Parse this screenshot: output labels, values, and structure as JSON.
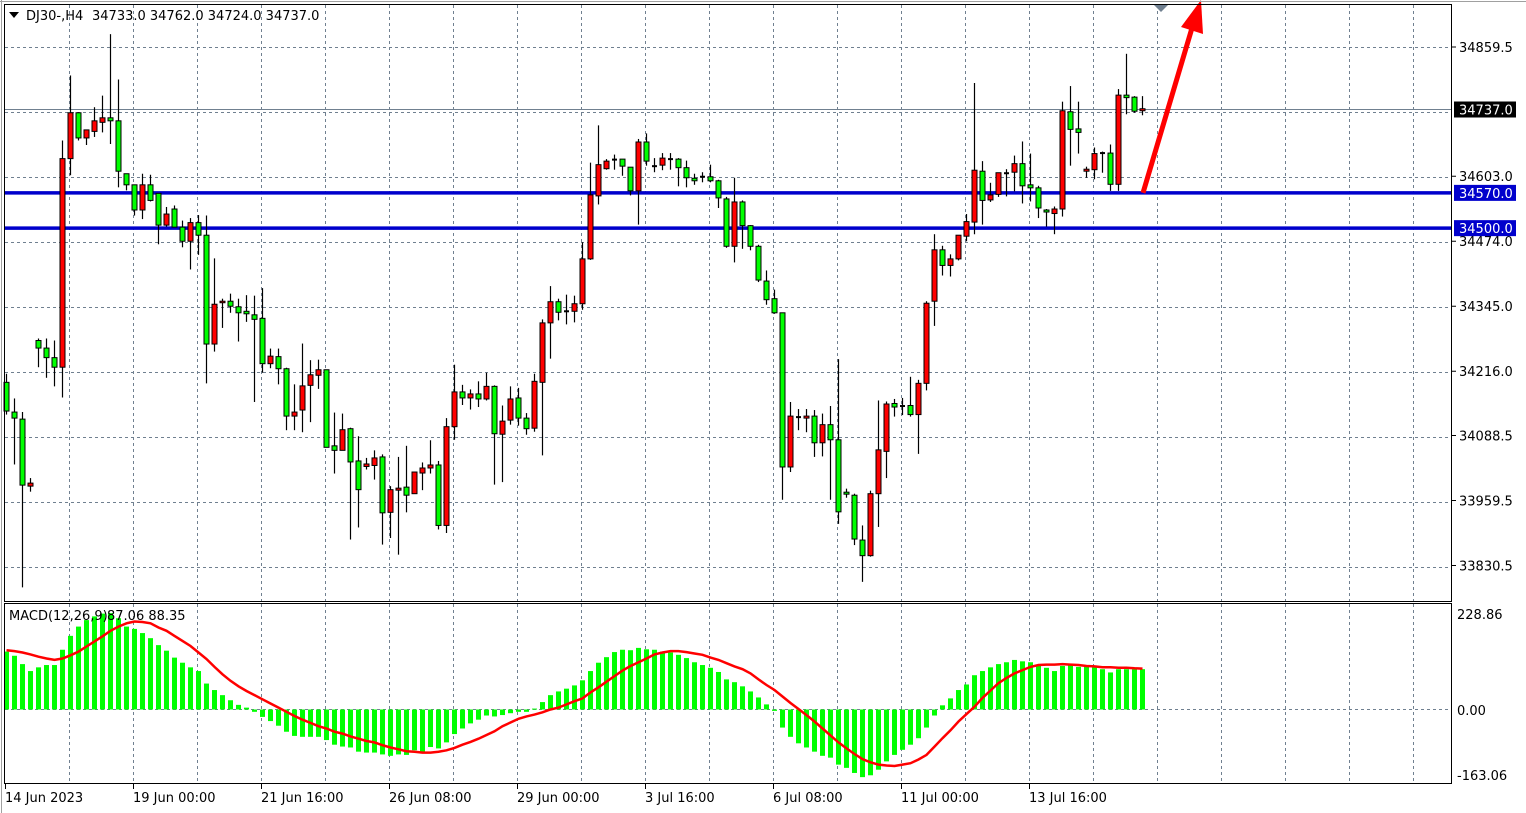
{
  "header": {
    "symbol": "DJ30-,H4",
    "ohlc": "34733.0 34762.0 34724.0 34737.0"
  },
  "colors": {
    "bull": "#ff0000",
    "bear": "#00ff00",
    "level": "#0000cc",
    "arrow": "#ff0000",
    "macd_hist": "#00ff00",
    "macd_signal": "#ff0000",
    "grid": "#708090",
    "current_bg": "#000000"
  },
  "chart_data": [
    {
      "type": "candlestick",
      "symbol": "DJ30-",
      "timeframe": "H4",
      "ylim": [
        33790,
        34900
      ],
      "grid": true,
      "price_ticks": [
        "34859.5",
        "34603.0",
        "34474.0",
        "34345.0",
        "34216.0",
        "34088.5",
        "33959.5",
        "33830.5"
      ],
      "price_tick_values": [
        34859.5,
        34603.0,
        34474.0,
        34345.0,
        34216.0,
        34088.5,
        33959.5,
        33830.5
      ],
      "current_price": {
        "value": 34737.0,
        "label": "34737.0"
      },
      "levels": [
        {
          "value": 34570.0,
          "label": "34570.0"
        },
        {
          "value": 34500.0,
          "label": "34500.0"
        }
      ],
      "annotation": {
        "type": "arrow",
        "from_price": 34570,
        "direction": "up"
      },
      "time_labels": [
        "14 Jun 2023",
        "19 Jun 00:00",
        "21 Jun 16:00",
        "26 Jun 08:00",
        "29 Jun 00:00",
        "3 Jul 16:00",
        "6 Jul 08:00",
        "11 Jul 00:00",
        "13 Jul 16:00"
      ],
      "candles_format": "open,high,low,close",
      "candles": [
        [
          34194,
          34211,
          34130,
          34137
        ],
        [
          34135,
          34162,
          34031,
          34123
        ],
        [
          34121,
          34135,
          33787,
          33990
        ],
        [
          33988,
          34004,
          33977,
          33994
        ],
        [
          34277,
          34281,
          34224,
          34262
        ],
        [
          34262,
          34281,
          34203,
          34243
        ],
        [
          34243,
          34277,
          34186,
          34224
        ],
        [
          34224,
          34674,
          34164,
          34638
        ],
        [
          34638,
          34803,
          34605,
          34729
        ],
        [
          34729,
          34730,
          34674,
          34679
        ],
        [
          34679,
          34695,
          34665,
          34695
        ],
        [
          34692,
          34740,
          34681,
          34713
        ],
        [
          34710,
          34763,
          34690,
          34719
        ],
        [
          34719,
          34885,
          34667,
          34713
        ],
        [
          34713,
          34795,
          34581,
          34613
        ],
        [
          34608,
          34608,
          34575,
          34586
        ],
        [
          34586,
          34586,
          34525,
          34536
        ],
        [
          34536,
          34608,
          34518,
          34586
        ],
        [
          34586,
          34606,
          34553,
          34555
        ],
        [
          34569,
          34569,
          34468,
          34506
        ],
        [
          34506,
          34542,
          34503,
          34528
        ],
        [
          34538,
          34545,
          34502,
          34502
        ],
        [
          34502,
          34515,
          34462,
          34474
        ],
        [
          34474,
          34520,
          34418,
          34511
        ],
        [
          34511,
          34526,
          34447,
          34486
        ],
        [
          34486,
          34525,
          34192,
          34270
        ],
        [
          34270,
          34440,
          34255,
          34349
        ],
        [
          34352,
          34360,
          34302,
          34355
        ],
        [
          34355,
          34370,
          34332,
          34345
        ],
        [
          34344,
          34360,
          34275,
          34332
        ],
        [
          34335,
          34367,
          34314,
          34330
        ],
        [
          34328,
          34366,
          34155,
          34319
        ],
        [
          34321,
          34381,
          34213,
          34231
        ],
        [
          34231,
          34261,
          34222,
          34246
        ],
        [
          34245,
          34261,
          34190,
          34221
        ],
        [
          34221,
          34223,
          34099,
          34127
        ],
        [
          34127,
          34190,
          34099,
          34135
        ],
        [
          34139,
          34271,
          34095,
          34187
        ],
        [
          34188,
          34238,
          34115,
          34209
        ],
        [
          34208,
          34239,
          34181,
          34219
        ],
        [
          34219,
          34219,
          34065,
          34065
        ],
        [
          34068,
          34134,
          34013,
          34059
        ],
        [
          34059,
          34132,
          34059,
          34100
        ],
        [
          34102,
          34104,
          33882,
          34036
        ],
        [
          34038,
          34087,
          33906,
          33981
        ],
        [
          34027,
          34044,
          34021,
          34032
        ],
        [
          34029,
          34059,
          34001,
          34044
        ],
        [
          34046,
          34051,
          33872,
          33935
        ],
        [
          33936,
          33988,
          33885,
          33981
        ],
        [
          33980,
          34046,
          33852,
          33984
        ],
        [
          33986,
          34068,
          33936,
          33970
        ],
        [
          33973,
          34016,
          33973,
          34016
        ],
        [
          34014,
          34035,
          33980,
          34024
        ],
        [
          34024,
          34079,
          34013,
          34030
        ],
        [
          34030,
          34038,
          33902,
          33910
        ],
        [
          33910,
          34123,
          33895,
          34106
        ],
        [
          34106,
          34229,
          34080,
          34175
        ],
        [
          34175,
          34189,
          34149,
          34163
        ],
        [
          34163,
          34180,
          34140,
          34171
        ],
        [
          34171,
          34196,
          34145,
          34161
        ],
        [
          34161,
          34213,
          34158,
          34186
        ],
        [
          34186,
          34188,
          33991,
          34092
        ],
        [
          34091,
          34148,
          33996,
          34117
        ],
        [
          34119,
          34186,
          34110,
          34161
        ],
        [
          34163,
          34183,
          34108,
          34123
        ],
        [
          34123,
          34133,
          34090,
          34102
        ],
        [
          34103,
          34211,
          34096,
          34196
        ],
        [
          34194,
          34319,
          34049,
          34312
        ],
        [
          34312,
          34385,
          34241,
          34354
        ],
        [
          34354,
          34360,
          34317,
          34333
        ],
        [
          34335,
          34368,
          34309,
          34335
        ],
        [
          34335,
          34366,
          34313,
          34350
        ],
        [
          34350,
          34472,
          34338,
          34439
        ],
        [
          34439,
          34630,
          34437,
          34566
        ],
        [
          34564,
          34704,
          34547,
          34626
        ],
        [
          34618,
          34637,
          34616,
          34633
        ],
        [
          34636,
          34646,
          34616,
          34636
        ],
        [
          34637,
          34637,
          34604,
          34623
        ],
        [
          34621,
          34621,
          34565,
          34574
        ],
        [
          34574,
          34677,
          34507,
          34671
        ],
        [
          34671,
          34688,
          34624,
          34633
        ],
        [
          34623,
          34639,
          34611,
          34623
        ],
        [
          34625,
          34649,
          34615,
          34639
        ],
        [
          34637,
          34649,
          34616,
          34637
        ],
        [
          34637,
          34639,
          34583,
          34620
        ],
        [
          34620,
          34634,
          34581,
          34600
        ],
        [
          34599,
          34608,
          34586,
          34594
        ],
        [
          34602,
          34611,
          34591,
          34602
        ],
        [
          34602,
          34626,
          34591,
          34594
        ],
        [
          34594,
          34596,
          34540,
          34560
        ],
        [
          34558,
          34562,
          34461,
          34464
        ],
        [
          34464,
          34600,
          34432,
          34552
        ],
        [
          34552,
          34555,
          34459,
          34505
        ],
        [
          34505,
          34506,
          34456,
          34464
        ],
        [
          34464,
          34467,
          34393,
          34397
        ],
        [
          34395,
          34416,
          34348,
          34358
        ],
        [
          34360,
          34378,
          34330,
          34332
        ],
        [
          34332,
          34332,
          33961,
          34026
        ],
        [
          34026,
          34155,
          34016,
          34127
        ],
        [
          34125,
          34141,
          34099,
          34125
        ],
        [
          34123,
          34141,
          34095,
          34127
        ],
        [
          34127,
          34139,
          34046,
          34074
        ],
        [
          34074,
          34132,
          34047,
          34110
        ],
        [
          34110,
          34147,
          33961,
          34080
        ],
        [
          34080,
          34240,
          33913,
          33937
        ],
        [
          33976,
          33983,
          33965,
          33972
        ],
        [
          33970,
          33973,
          33871,
          33883
        ],
        [
          33881,
          33910,
          33798,
          33850
        ],
        [
          33850,
          33979,
          33848,
          33973
        ],
        [
          33973,
          34158,
          33907,
          34060
        ],
        [
          34057,
          34156,
          34004,
          34151
        ],
        [
          34152,
          34161,
          34126,
          34145
        ],
        [
          34147,
          34163,
          34129,
          34147
        ],
        [
          34148,
          34205,
          34126,
          34130
        ],
        [
          34130,
          34199,
          34052,
          34192
        ],
        [
          34192,
          34355,
          34178,
          34351
        ],
        [
          34355,
          34488,
          34306,
          34457
        ],
        [
          34457,
          34465,
          34406,
          34426
        ],
        [
          34426,
          34448,
          34404,
          34439
        ],
        [
          34439,
          34486,
          34436,
          34486
        ],
        [
          34484,
          34528,
          34474,
          34513
        ],
        [
          34512,
          34788,
          34488,
          34615
        ],
        [
          34613,
          34633,
          34507,
          34555
        ],
        [
          34556,
          34590,
          34552,
          34566
        ],
        [
          34567,
          34610,
          34562,
          34610
        ],
        [
          34609,
          34617,
          34563,
          34609
        ],
        [
          34611,
          34644,
          34573,
          34628
        ],
        [
          34628,
          34672,
          34549,
          34584
        ],
        [
          34586,
          34648,
          34553,
          34580
        ],
        [
          34580,
          34584,
          34520,
          34540
        ],
        [
          34536,
          34538,
          34503,
          34532
        ],
        [
          34529,
          34543,
          34488,
          34538
        ],
        [
          34538,
          34751,
          34523,
          34733
        ],
        [
          34731,
          34782,
          34624,
          34696
        ],
        [
          34697,
          34751,
          34648,
          34690
        ],
        [
          34613,
          34622,
          34600,
          34617
        ],
        [
          34616,
          34660,
          34597,
          34648
        ],
        [
          34649,
          34652,
          34610,
          34649
        ],
        [
          34649,
          34666,
          34574,
          34587
        ],
        [
          34587,
          34776,
          34574,
          34764
        ],
        [
          34764,
          34846,
          34726,
          34759
        ],
        [
          34760,
          34762,
          34729,
          34732
        ],
        [
          34733,
          34762,
          34724,
          34737
        ]
      ]
    },
    {
      "type": "bar+line",
      "title": "MACD(12,26,9)",
      "values_label": "87.06 88.35",
      "ylim": [
        -163.06,
        228.86
      ],
      "y_ticks": [
        "228.86",
        "0.00",
        "-163.06"
      ],
      "histogram": [
        125,
        116,
        98,
        83,
        91,
        96,
        96,
        129,
        159,
        179,
        193,
        201,
        207,
        208,
        197,
        179,
        174,
        165,
        154,
        139,
        127,
        112,
        101,
        91,
        83,
        56,
        42,
        31,
        20,
        10,
        4,
        -5,
        -16,
        -25,
        -35,
        -48,
        -57,
        -59,
        -59,
        -59,
        -66,
        -76,
        -80,
        -82,
        -91,
        -93,
        -93,
        -97,
        -100,
        -97,
        -98,
        -88,
        -91,
        -81,
        -84,
        -71,
        -53,
        -41,
        -30,
        -22,
        -13,
        -15,
        -12,
        -8,
        -5,
        -5,
        2,
        16,
        31,
        39,
        45,
        52,
        63,
        83,
        101,
        113,
        124,
        129,
        128,
        133,
        130,
        129,
        125,
        123,
        118,
        111,
        102,
        96,
        90,
        81,
        65,
        59,
        50,
        39,
        26,
        11,
        -3,
        -39,
        -59,
        -73,
        -82,
        -91,
        -100,
        -104,
        -119,
        -126,
        -137,
        -146,
        -142,
        -130,
        -112,
        -98,
        -87,
        -76,
        -62,
        -39,
        -13,
        9,
        24,
        42,
        54,
        74,
        83,
        91,
        98,
        102,
        107,
        104,
        102,
        94,
        90,
        83,
        94,
        98,
        92,
        92,
        92,
        87,
        80,
        87,
        87,
        87,
        87.06
      ],
      "signal": [
        128,
        126,
        123,
        119,
        114,
        110,
        107,
        110,
        117,
        125,
        136,
        147,
        158,
        170,
        179,
        186,
        190,
        189,
        186,
        177,
        170,
        159,
        148,
        137,
        123,
        109,
        92,
        76,
        62,
        50,
        40,
        31,
        22,
        13,
        4,
        -5,
        -14,
        -22,
        -29,
        -36,
        -41,
        -48,
        -52,
        -58,
        -63,
        -68,
        -71,
        -77,
        -82,
        -86,
        -90,
        -91,
        -93,
        -93,
        -91,
        -88,
        -83,
        -76,
        -70,
        -63,
        -55,
        -47,
        -36,
        -28,
        -20,
        -15,
        -11,
        -6,
        0,
        4,
        11,
        18,
        24,
        37,
        48,
        60,
        72,
        84,
        94,
        102,
        110,
        119,
        123,
        126,
        126,
        124,
        121,
        118,
        112,
        107,
        100,
        93,
        87,
        78,
        65,
        53,
        42,
        28,
        14,
        1,
        -12,
        -26,
        -41,
        -56,
        -71,
        -84,
        -96,
        -107,
        -114,
        -119,
        -121,
        -122,
        -119,
        -116,
        -108,
        -98,
        -80,
        -62,
        -45,
        -26,
        -10,
        6,
        25,
        41,
        57,
        68,
        78,
        85,
        92,
        96,
        97,
        97,
        98,
        97,
        96,
        94,
        93,
        91,
        91,
        90,
        90,
        89,
        88.35
      ]
    }
  ]
}
